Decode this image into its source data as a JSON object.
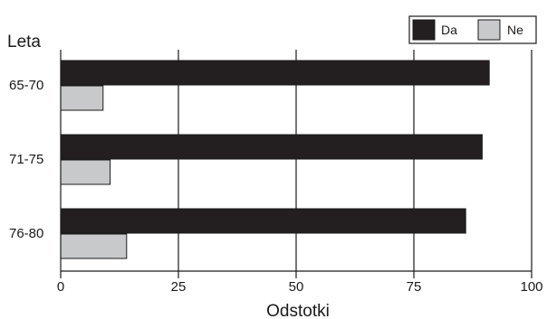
{
  "chart_data": {
    "type": "bar",
    "orientation": "horizontal",
    "categories": [
      "65-70",
      "71-75",
      "76-80"
    ],
    "series": [
      {
        "name": "Da",
        "values": [
          91,
          89.5,
          86
        ],
        "color": "#231f20"
      },
      {
        "name": "Ne",
        "values": [
          9,
          10.5,
          14
        ],
        "color": "#c8c9cb"
      }
    ],
    "xlabel": "Odstotki",
    "ylabel": "Leta",
    "xlim": [
      0,
      100
    ],
    "x_ticks": [
      "0",
      "25",
      "50",
      "75",
      "100"
    ],
    "grid": "vertical",
    "legend": "top-right"
  }
}
